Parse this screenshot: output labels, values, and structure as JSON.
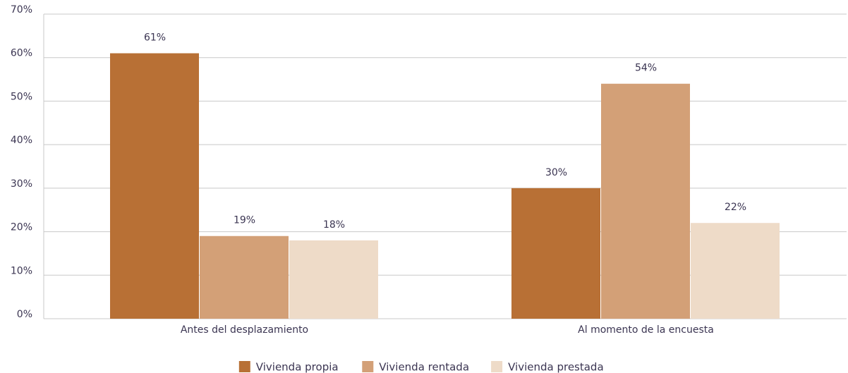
{
  "chart_data": {
    "type": "bar",
    "categories": [
      "Antes del desplazamiento",
      "Al momento de la encuesta"
    ],
    "series": [
      {
        "name": "Vivienda propia",
        "color": "#b87035",
        "values": [
          61,
          30
        ],
        "value_labels": [
          "61%",
          "30%"
        ]
      },
      {
        "name": "Vivienda rentada",
        "color": "#d3a077",
        "values": [
          19,
          54
        ],
        "value_labels": [
          "19%",
          "54%"
        ]
      },
      {
        "name": "Vivienda prestada",
        "color": "#eedbc8",
        "values": [
          18,
          22
        ],
        "value_labels": [
          "18%",
          "22%"
        ]
      }
    ],
    "ylim": [
      0,
      70
    ],
    "yticks": [
      {
        "value": 0,
        "label": "0%"
      },
      {
        "value": 10,
        "label": "10%"
      },
      {
        "value": 20,
        "label": "20%"
      },
      {
        "value": 30,
        "label": "30%"
      },
      {
        "value": 40,
        "label": "40%"
      },
      {
        "value": 50,
        "label": "50%"
      },
      {
        "value": 60,
        "label": "60%"
      },
      {
        "value": 70,
        "label": "70%"
      }
    ],
    "grid": true,
    "legend": "bottom"
  }
}
